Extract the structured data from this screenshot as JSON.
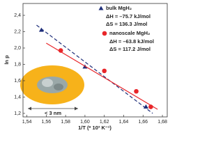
{
  "chart_data": {
    "type": "scatter",
    "x_label": "1/T (* 10³ K⁻¹)",
    "y_label": "ln p",
    "xlim": [
      1.536,
      1.685
    ],
    "ylim": [
      1.157,
      2.545
    ],
    "xticks": [
      {
        "value": 1.54,
        "label": "1,54"
      },
      {
        "value": 1.56,
        "label": "1,56"
      },
      {
        "value": 1.58,
        "label": "1,58"
      },
      {
        "value": 1.6,
        "label": "1,60"
      },
      {
        "value": 1.62,
        "label": "1,62"
      },
      {
        "value": 1.64,
        "label": "1,64"
      },
      {
        "value": 1.66,
        "label": "1,66"
      },
      {
        "value": 1.68,
        "label": "1,68"
      }
    ],
    "yticks": [
      {
        "value": 1.2,
        "label": "1,2"
      },
      {
        "value": 1.4,
        "label": "1,4"
      },
      {
        "value": 1.6,
        "label": "1,6"
      },
      {
        "value": 1.8,
        "label": "1,8"
      },
      {
        "value": 2.0,
        "label": "2,0"
      },
      {
        "value": 2.2,
        "label": "2,2"
      },
      {
        "value": 2.4,
        "label": "2,4"
      }
    ],
    "series": [
      {
        "name": "bulk MgH₂",
        "color": "#1f2f7a",
        "marker": "triangle",
        "x": [
          1.555,
          1.6,
          1.663
        ],
        "values": [
          2.22,
          1.77,
          1.28
        ],
        "fit": {
          "x": [
            1.55,
            1.67
          ],
          "y": [
            2.28,
            1.2
          ],
          "dash": true
        },
        "annotations": [
          "ΔH = –75.7 kJ/mol",
          "ΔS = 136.3 J/mol"
        ]
      },
      {
        "name": "nanoscale MgH₂",
        "color": "#e8262a",
        "marker": "circle",
        "x": [
          1.575,
          1.62,
          1.653,
          1.668
        ],
        "values": [
          1.97,
          1.72,
          1.47,
          1.28
        ],
        "fit": {
          "x": [
            1.56,
            1.675
          ],
          "y": [
            2.06,
            1.25
          ],
          "dash": false
        },
        "annotations": [
          "ΔH = –63.8 kJ/mol",
          "ΔS = 117.2 J/mol"
        ]
      }
    ],
    "inset_label": "< 3 nm"
  }
}
